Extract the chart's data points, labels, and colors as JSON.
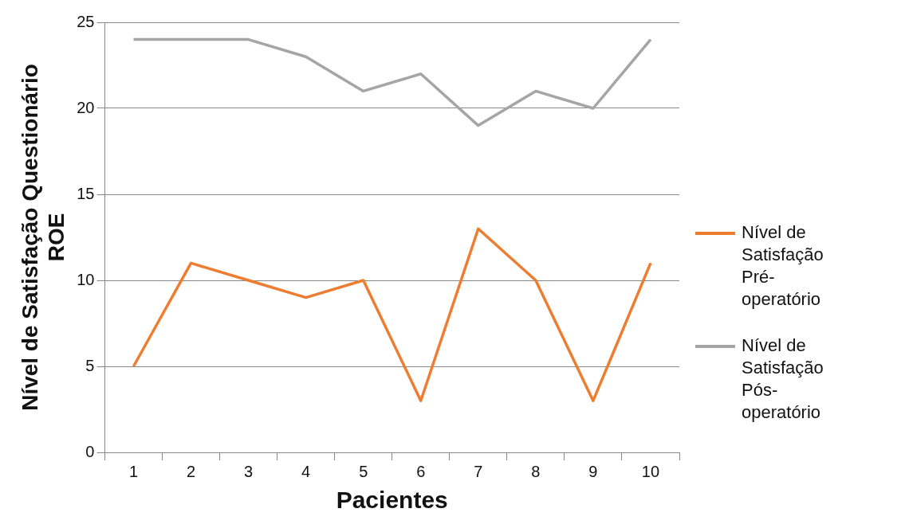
{
  "chart_data": {
    "type": "line",
    "xlabel": "Pacientes",
    "ylabel": "Nível de Satisfação Questionário ROE",
    "categories": [
      "1",
      "2",
      "3",
      "4",
      "5",
      "6",
      "7",
      "8",
      "9",
      "10"
    ],
    "series": [
      {
        "name": "Nível de Satisfação Pré-operatório",
        "color": "#ed7d31",
        "values": [
          5,
          11,
          10,
          9,
          10,
          3,
          13,
          10,
          3,
          11
        ]
      },
      {
        "name": "Nível de Satisfação Pós-operatório",
        "color": "#a5a5a5",
        "values": [
          24,
          24,
          24,
          23,
          21,
          22,
          19,
          21,
          20,
          24
        ]
      }
    ],
    "ylim": [
      0,
      25
    ],
    "yticks": [
      0,
      5,
      10,
      15,
      20,
      25
    ],
    "grid": "y",
    "legend": "right",
    "marker": "none",
    "line_style": "solid"
  }
}
